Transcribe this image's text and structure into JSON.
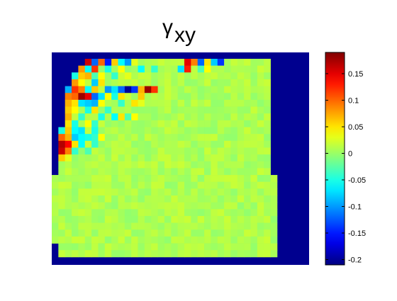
{
  "chart_data": {
    "type": "heatmap",
    "title": {
      "symbol": "γ",
      "subscript": "xy"
    },
    "xlabel": "",
    "ylabel": "",
    "grid": false,
    "axes_ticks_visible": false,
    "colormap": "jet",
    "background_color": "#00008f",
    "clim": [
      -0.21,
      0.19
    ],
    "colorbar": {
      "position": "right",
      "ticks": [
        -0.2,
        -0.15,
        -0.1,
        -0.05,
        0,
        0.05,
        0.1,
        0.15
      ],
      "tick_labels": [
        "-0.2",
        "-0.15",
        "-0.1",
        "-0.05",
        "0",
        "0.05",
        "0.1",
        "0.15"
      ]
    },
    "grid_size": {
      "cols": 36,
      "rows": 29
    },
    "region_notes": "Field values are near zero across the domain; strong positive and negative strain concentrations appear along the upper-left corner of the measured region.",
    "region_shape": {
      "rows_0_16": {
        "start_col": 2,
        "end_col": 32
      },
      "rows_17_26": {
        "start_col": 0,
        "end_col": 33
      },
      "row_start_by_top_rows": [
        5,
        4,
        3,
        3,
        2,
        2,
        2,
        2,
        2,
        2,
        1,
        1,
        1,
        1,
        1,
        1,
        1
      ],
      "rows_27_28": {
        "start_col": 1,
        "end_col": 33
      }
    },
    "hot_cells": [
      {
        "row": 0,
        "col": 5,
        "value": 0.16
      },
      {
        "row": 0,
        "col": 6,
        "value": -0.12
      },
      {
        "row": 0,
        "col": 7,
        "value": 0.1
      },
      {
        "row": 0,
        "col": 8,
        "value": -0.15
      },
      {
        "row": 0,
        "col": 9,
        "value": 0.06
      },
      {
        "row": 0,
        "col": 10,
        "value": -0.06
      },
      {
        "row": 0,
        "col": 11,
        "value": -0.1
      },
      {
        "row": 0,
        "col": 12,
        "value": 0.03
      },
      {
        "row": 0,
        "col": 20,
        "value": 0.15
      },
      {
        "row": 0,
        "col": 21,
        "value": 0.09
      },
      {
        "row": 0,
        "col": 22,
        "value": -0.12
      },
      {
        "row": 0,
        "col": 23,
        "value": 0.05
      },
      {
        "row": 0,
        "col": 24,
        "value": -0.08
      },
      {
        "row": 0,
        "col": 25,
        "value": -0.14
      },
      {
        "row": 1,
        "col": 4,
        "value": 0.08
      },
      {
        "row": 1,
        "col": 5,
        "value": -0.06
      },
      {
        "row": 1,
        "col": 6,
        "value": 0.12
      },
      {
        "row": 1,
        "col": 8,
        "value": -0.05
      },
      {
        "row": 1,
        "col": 10,
        "value": 0.04
      },
      {
        "row": 1,
        "col": 13,
        "value": -0.06
      },
      {
        "row": 1,
        "col": 15,
        "value": -0.04
      },
      {
        "row": 1,
        "col": 19,
        "value": -0.07
      },
      {
        "row": 1,
        "col": 20,
        "value": 0.13
      },
      {
        "row": 1,
        "col": 22,
        "value": -0.03
      },
      {
        "row": 1,
        "col": 23,
        "value": 0.04
      },
      {
        "row": 2,
        "col": 3,
        "value": -0.05
      },
      {
        "row": 2,
        "col": 4,
        "value": 0.06
      },
      {
        "row": 2,
        "col": 5,
        "value": 0.07
      },
      {
        "row": 2,
        "col": 6,
        "value": -0.03
      },
      {
        "row": 2,
        "col": 7,
        "value": 0.04
      },
      {
        "row": 2,
        "col": 9,
        "value": -0.04
      },
      {
        "row": 2,
        "col": 11,
        "value": 0.03
      },
      {
        "row": 3,
        "col": 3,
        "value": 0.08
      },
      {
        "row": 3,
        "col": 4,
        "value": 0.04
      },
      {
        "row": 3,
        "col": 6,
        "value": -0.08
      },
      {
        "row": 3,
        "col": 7,
        "value": 0.05
      },
      {
        "row": 4,
        "col": 2,
        "value": -0.09
      },
      {
        "row": 4,
        "col": 3,
        "value": 0.12
      },
      {
        "row": 4,
        "col": 4,
        "value": 0.09
      },
      {
        "row": 4,
        "col": 5,
        "value": -0.06
      },
      {
        "row": 4,
        "col": 6,
        "value": 0.06
      },
      {
        "row": 4,
        "col": 8,
        "value": -0.1
      },
      {
        "row": 4,
        "col": 9,
        "value": -0.07
      },
      {
        "row": 4,
        "col": 10,
        "value": -0.12
      },
      {
        "row": 4,
        "col": 11,
        "value": -0.2
      },
      {
        "row": 4,
        "col": 12,
        "value": -0.14
      },
      {
        "row": 4,
        "col": 13,
        "value": 0.07
      },
      {
        "row": 4,
        "col": 14,
        "value": 0.18
      },
      {
        "row": 4,
        "col": 15,
        "value": 0.12
      },
      {
        "row": 5,
        "col": 2,
        "value": 0.09
      },
      {
        "row": 5,
        "col": 3,
        "value": 0.1
      },
      {
        "row": 5,
        "col": 4,
        "value": 0.18
      },
      {
        "row": 5,
        "col": 5,
        "value": 0.15
      },
      {
        "row": 5,
        "col": 6,
        "value": -0.12
      },
      {
        "row": 5,
        "col": 7,
        "value": -0.07
      },
      {
        "row": 5,
        "col": 8,
        "value": 0.04
      },
      {
        "row": 5,
        "col": 9,
        "value": -0.05
      },
      {
        "row": 5,
        "col": 10,
        "value": 0.05
      },
      {
        "row": 5,
        "col": 13,
        "value": 0.06
      },
      {
        "row": 6,
        "col": 2,
        "value": 0.07
      },
      {
        "row": 6,
        "col": 3,
        "value": 0.05
      },
      {
        "row": 6,
        "col": 4,
        "value": -0.07
      },
      {
        "row": 6,
        "col": 5,
        "value": -0.08
      },
      {
        "row": 6,
        "col": 6,
        "value": -0.09
      },
      {
        "row": 6,
        "col": 7,
        "value": 0.04
      },
      {
        "row": 6,
        "col": 10,
        "value": -0.04
      },
      {
        "row": 6,
        "col": 12,
        "value": 0.05
      },
      {
        "row": 6,
        "col": 13,
        "value": 0.03
      },
      {
        "row": 7,
        "col": 2,
        "value": 0.06
      },
      {
        "row": 7,
        "col": 3,
        "value": 0.04
      },
      {
        "row": 7,
        "col": 5,
        "value": -0.05
      },
      {
        "row": 7,
        "col": 6,
        "value": 0.05
      },
      {
        "row": 7,
        "col": 8,
        "value": -0.04
      },
      {
        "row": 8,
        "col": 2,
        "value": 0.07
      },
      {
        "row": 8,
        "col": 4,
        "value": -0.04
      },
      {
        "row": 8,
        "col": 7,
        "value": -0.05
      },
      {
        "row": 8,
        "col": 9,
        "value": -0.06
      },
      {
        "row": 8,
        "col": 10,
        "value": 0.05
      },
      {
        "row": 8,
        "col": 11,
        "value": -0.03
      },
      {
        "row": 8,
        "col": 12,
        "value": 0.04
      },
      {
        "row": 9,
        "col": 1,
        "value": 0.06
      },
      {
        "row": 9,
        "col": 2,
        "value": 0.05
      },
      {
        "row": 9,
        "col": 3,
        "value": -0.05
      },
      {
        "row": 9,
        "col": 5,
        "value": 0.04
      },
      {
        "row": 9,
        "col": 6,
        "value": -0.04
      },
      {
        "row": 10,
        "col": 1,
        "value": -0.05
      },
      {
        "row": 10,
        "col": 2,
        "value": 0.06
      },
      {
        "row": 10,
        "col": 3,
        "value": -0.06
      },
      {
        "row": 10,
        "col": 4,
        "value": -0.07
      },
      {
        "row": 10,
        "col": 6,
        "value": -0.05
      },
      {
        "row": 11,
        "col": 1,
        "value": 0.1
      },
      {
        "row": 11,
        "col": 2,
        "value": 0.07
      },
      {
        "row": 11,
        "col": 3,
        "value": -0.08
      },
      {
        "row": 11,
        "col": 4,
        "value": -0.06
      },
      {
        "row": 11,
        "col": 5,
        "value": -0.05
      },
      {
        "row": 11,
        "col": 6,
        "value": -0.04
      },
      {
        "row": 11,
        "col": 7,
        "value": 0.04
      },
      {
        "row": 12,
        "col": 1,
        "value": 0.17
      },
      {
        "row": 12,
        "col": 2,
        "value": 0.14
      },
      {
        "row": 12,
        "col": 3,
        "value": 0.05
      },
      {
        "row": 12,
        "col": 4,
        "value": -0.06
      },
      {
        "row": 12,
        "col": 6,
        "value": -0.04
      },
      {
        "row": 13,
        "col": 1,
        "value": 0.16
      },
      {
        "row": 13,
        "col": 2,
        "value": 0.09
      },
      {
        "row": 13,
        "col": 3,
        "value": -0.04
      },
      {
        "row": 13,
        "col": 5,
        "value": -0.03
      },
      {
        "row": 14,
        "col": 1,
        "value": 0.06
      },
      {
        "row": 14,
        "col": 2,
        "value": 0.03
      }
    ]
  }
}
